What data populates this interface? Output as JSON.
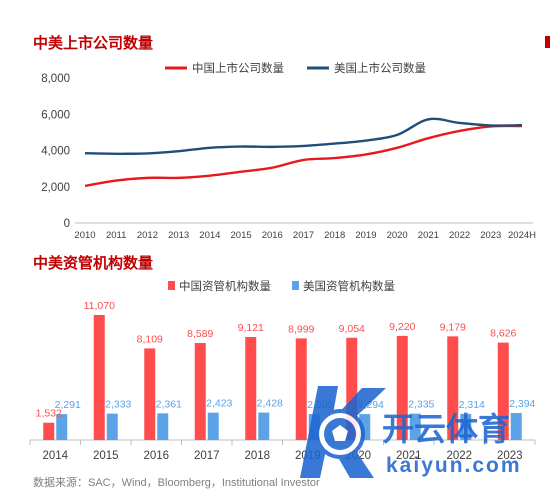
{
  "chart_titles": [
    "中美上市公司数量",
    "中美资管机构数量"
  ],
  "source": "数据来源：SAC，Wind，Bloomberg，Institutional Investor",
  "watermark": {
    "brand_cn": "开云体育",
    "brand_en": "kaiyun.com"
  },
  "colors": {
    "title": "#c00000",
    "china": "#e8191d",
    "usa": "#1f4e79",
    "china_bar": "#ff4d4d",
    "usa_bar": "#5ba3e6"
  },
  "chart_data": [
    {
      "type": "line",
      "title": "中美上市公司数量",
      "x": [
        "2010",
        "2011",
        "2012",
        "2013",
        "2014",
        "2015",
        "2016",
        "2017",
        "2018",
        "2019",
        "2020",
        "2021",
        "2022",
        "2023",
        "2024H"
      ],
      "ylim": [
        0,
        8000
      ],
      "yticks": [
        "0",
        "2,000",
        "4,000",
        "6,000",
        "8,000"
      ],
      "grid": false,
      "legend": "top-center",
      "series": [
        {
          "name": "中国上市公司数量",
          "color": "#e8191d",
          "values": [
            2050,
            2340,
            2490,
            2490,
            2610,
            2830,
            3050,
            3480,
            3580,
            3780,
            4150,
            4680,
            5080,
            5330,
            5350
          ]
        },
        {
          "name": "美国上市公司数量",
          "color": "#1f4e79",
          "values": [
            3850,
            3820,
            3840,
            3960,
            4150,
            4220,
            4200,
            4250,
            4380,
            4550,
            4860,
            5720,
            5520,
            5380,
            5400
          ]
        }
      ]
    },
    {
      "type": "bar",
      "title": "中美资管机构数量",
      "categories": [
        "2014",
        "2015",
        "2016",
        "2017",
        "2018",
        "2019",
        "2020",
        "2021",
        "2022",
        "2023"
      ],
      "legend": "top-center",
      "series": [
        {
          "name": "中国资管机构数量",
          "color": "#ff4d4d",
          "values": [
            1532,
            11070,
            8109,
            8589,
            9121,
            8999,
            9054,
            9220,
            9179,
            8626
          ],
          "labels": [
            "1,532",
            "11,070",
            "8,109",
            "8,589",
            "9,121",
            "8,999",
            "9,054",
            "9,220",
            "9,179",
            "8,626"
          ]
        },
        {
          "name": "美国资管机构数量",
          "color": "#5ba3e6",
          "values": [
            2291,
            2333,
            2361,
            2423,
            2428,
            2300,
            2294,
            2335,
            2314,
            2394
          ],
          "labels": [
            "2,291",
            "2,333",
            "2,361",
            "2,423",
            "2,428",
            "2,300",
            "2,294",
            "2,335",
            "2,314",
            "2,394"
          ]
        }
      ]
    }
  ]
}
